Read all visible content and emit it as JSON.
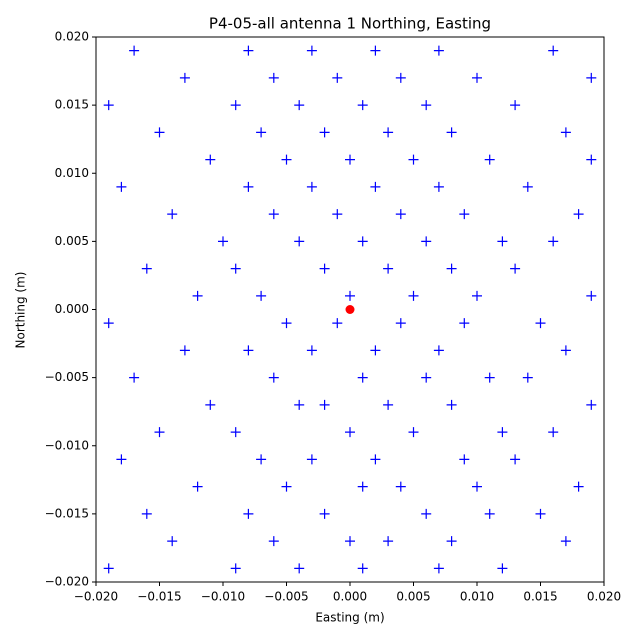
{
  "chart_data": {
    "type": "scatter",
    "title": "P4-05-all antenna 1 Northing, Easting",
    "xlabel": "Easting (m)",
    "ylabel": "Northing (m)",
    "xlim": [
      -0.02,
      0.02
    ],
    "ylim": [
      -0.02,
      0.02
    ],
    "xticks": [
      {
        "value": -0.02,
        "label": "−0.020"
      },
      {
        "value": -0.015,
        "label": "−0.015"
      },
      {
        "value": -0.01,
        "label": "−0.010"
      },
      {
        "value": -0.005,
        "label": "−0.005"
      },
      {
        "value": 0,
        "label": "0.000"
      },
      {
        "value": 0.005,
        "label": "0.005"
      },
      {
        "value": 0.01,
        "label": "0.010"
      },
      {
        "value": 0.015,
        "label": "0.015"
      },
      {
        "value": 0.02,
        "label": "0.020"
      }
    ],
    "yticks": [
      {
        "value": -0.02,
        "label": "−0.020"
      },
      {
        "value": -0.015,
        "label": "−0.015"
      },
      {
        "value": -0.01,
        "label": "−0.010"
      },
      {
        "value": -0.005,
        "label": "−0.005"
      },
      {
        "value": 0,
        "label": "0.000"
      },
      {
        "value": 0.005,
        "label": "0.005"
      },
      {
        "value": 0.01,
        "label": "0.010"
      },
      {
        "value": 0.015,
        "label": "0.015"
      },
      {
        "value": 0.02,
        "label": "0.020"
      }
    ],
    "series": [
      {
        "color": "#0000ff",
        "marker": "+",
        "x": [
          -0.017,
          -0.008,
          -0.003,
          0.002,
          0.007,
          0.016,
          -0.013,
          -0.006,
          -0.001,
          0.004,
          0.01,
          0.019,
          -0.019,
          -0.009,
          -0.004,
          0.001,
          0.006,
          0.013,
          -0.015,
          -0.007,
          -0.002,
          0.003,
          0.008,
          0.017,
          -0.011,
          -0.005,
          0.0,
          0.005,
          0.011,
          0.019,
          -0.018,
          -0.008,
          -0.003,
          0.002,
          0.007,
          0.014,
          -0.014,
          -0.006,
          -0.001,
          0.004,
          0.009,
          0.018,
          -0.01,
          -0.004,
          0.001,
          0.006,
          0.012,
          0.016,
          -0.016,
          -0.009,
          -0.002,
          0.003,
          0.008,
          0.013,
          -0.012,
          -0.007,
          0.0,
          0.005,
          0.01,
          0.019,
          -0.019,
          -0.005,
          -0.001,
          0.004,
          0.009,
          0.015,
          -0.013,
          -0.008,
          -0.003,
          0.002,
          0.007,
          0.017,
          -0.017,
          -0.006,
          0.001,
          0.006,
          0.011,
          0.014,
          -0.011,
          -0.004,
          -0.002,
          0.003,
          0.008,
          0.019,
          -0.015,
          -0.009,
          0.0,
          0.005,
          0.012,
          0.016,
          -0.018,
          -0.007,
          -0.003,
          0.002,
          0.009,
          0.013,
          -0.012,
          -0.005,
          0.001,
          0.004,
          0.01,
          0.018,
          -0.016,
          -0.008,
          -0.002,
          0.006,
          0.011,
          0.015,
          -0.014,
          -0.006,
          0.0,
          0.003,
          0.008,
          0.017,
          -0.019,
          -0.009,
          -0.004,
          0.001,
          0.007,
          0.012
        ],
        "y": [
          0.019,
          0.019,
          0.019,
          0.019,
          0.019,
          0.019,
          0.017,
          0.017,
          0.017,
          0.017,
          0.017,
          0.017,
          0.015,
          0.015,
          0.015,
          0.015,
          0.015,
          0.015,
          0.013,
          0.013,
          0.013,
          0.013,
          0.013,
          0.013,
          0.011,
          0.011,
          0.011,
          0.011,
          0.011,
          0.011,
          0.009,
          0.009,
          0.009,
          0.009,
          0.009,
          0.009,
          0.007,
          0.007,
          0.007,
          0.007,
          0.007,
          0.007,
          0.005,
          0.005,
          0.005,
          0.005,
          0.005,
          0.005,
          0.003,
          0.003,
          0.003,
          0.003,
          0.003,
          0.003,
          0.001,
          0.001,
          0.001,
          0.001,
          0.001,
          0.001,
          -0.001,
          -0.001,
          -0.001,
          -0.001,
          -0.001,
          -0.001,
          -0.003,
          -0.003,
          -0.003,
          -0.003,
          -0.003,
          -0.003,
          -0.005,
          -0.005,
          -0.005,
          -0.005,
          -0.005,
          -0.005,
          -0.007,
          -0.007,
          -0.007,
          -0.007,
          -0.007,
          -0.007,
          -0.009,
          -0.009,
          -0.009,
          -0.009,
          -0.009,
          -0.009,
          -0.011,
          -0.011,
          -0.011,
          -0.011,
          -0.011,
          -0.011,
          -0.013,
          -0.013,
          -0.013,
          -0.013,
          -0.013,
          -0.013,
          -0.015,
          -0.015,
          -0.015,
          -0.015,
          -0.015,
          -0.015,
          -0.017,
          -0.017,
          -0.017,
          -0.017,
          -0.017,
          -0.017,
          -0.019,
          -0.019,
          -0.019,
          -0.019,
          -0.019,
          -0.019
        ]
      },
      {
        "color": "#ff0000",
        "marker": "o",
        "x": [
          0
        ],
        "y": [
          0
        ]
      }
    ]
  }
}
